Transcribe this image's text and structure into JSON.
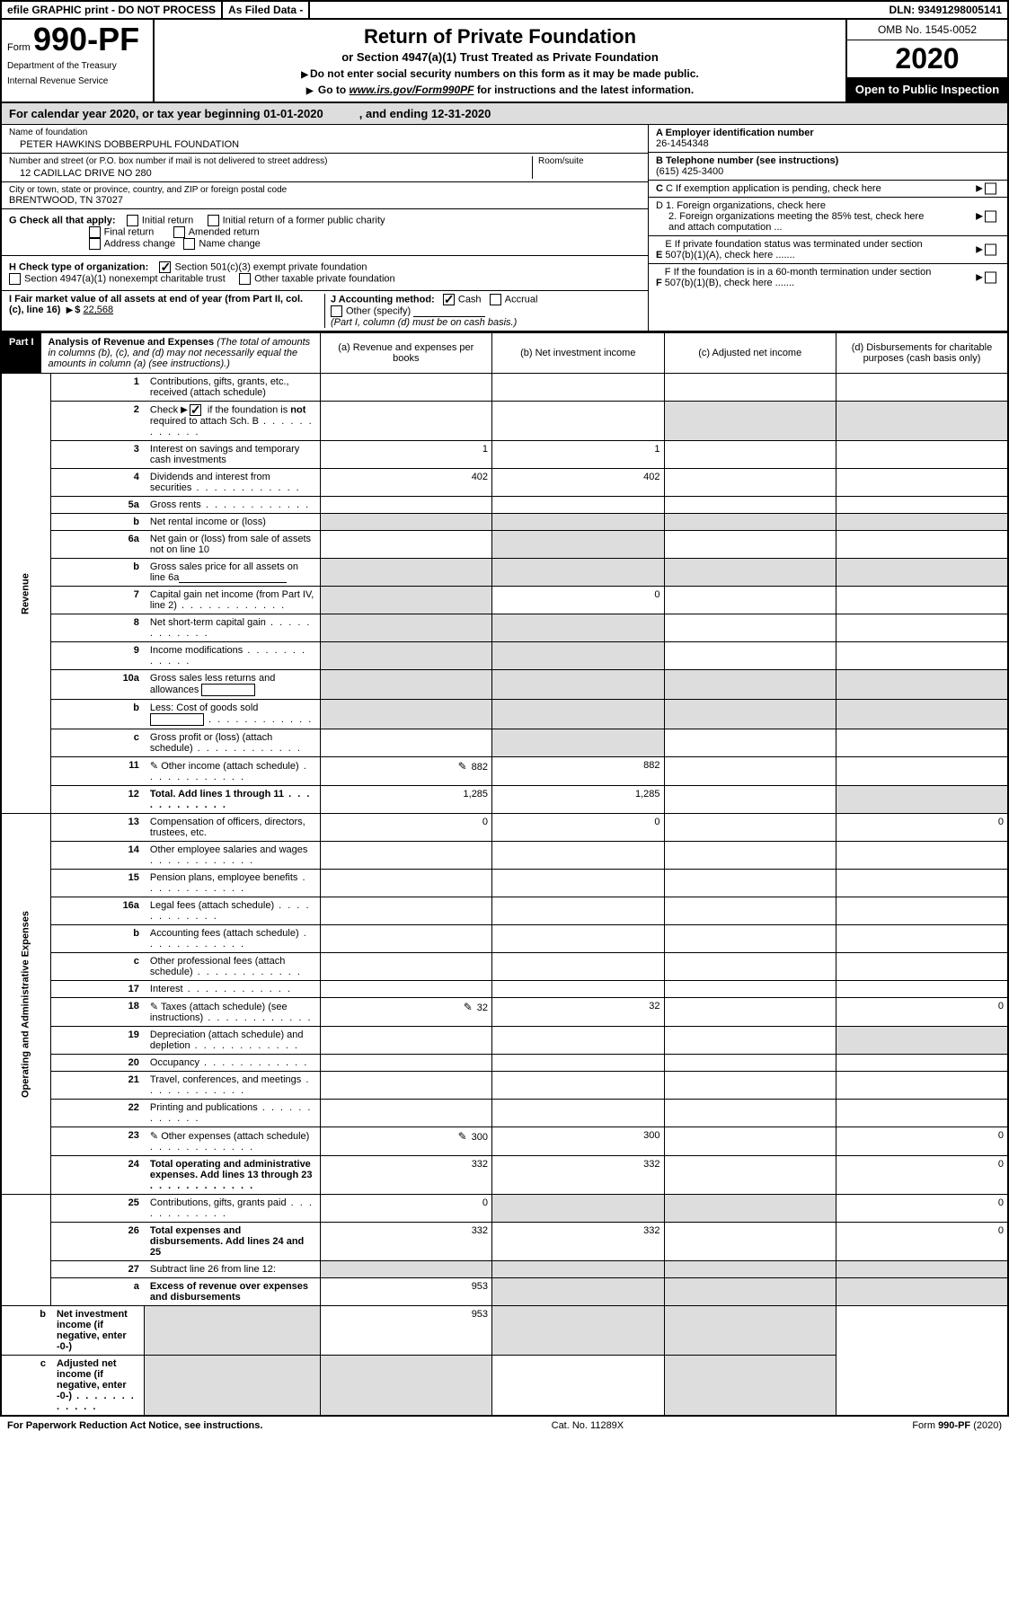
{
  "topbar": {
    "efile": "efile GRAPHIC print - DO NOT PROCESS",
    "asfiled": "As Filed Data -",
    "dln_label": "DLN:",
    "dln": "93491298005141"
  },
  "header": {
    "form_word": "Form",
    "form_num": "990-PF",
    "dept1": "Department of the Treasury",
    "dept2": "Internal Revenue Service",
    "title": "Return of Private Foundation",
    "subtitle": "or Section 4947(a)(1) Trust Treated as Private Foundation",
    "instr1": "Do not enter social security numbers on this form as it may be made public.",
    "instr2a": "Go to ",
    "instr2_link": "www.irs.gov/Form990PF",
    "instr2b": " for instructions and the latest information.",
    "omb": "OMB No. 1545-0052",
    "year": "2020",
    "open": "Open to Public Inspection"
  },
  "cal": {
    "text1": "For calendar year 2020, or tax year beginning 01-01-2020",
    "text2": ", and ending 12-31-2020"
  },
  "info": {
    "name_label": "Name of foundation",
    "name": "PETER HAWKINS DOBBERPUHL FOUNDATION",
    "addr_label": "Number and street (or P.O. box number if mail is not delivered to street address)",
    "room_label": "Room/suite",
    "addr": "12 CADILLAC DRIVE NO 280",
    "city_label": "City or town, state or province, country, and ZIP or foreign postal code",
    "city": "BRENTWOOD, TN  37027",
    "g_label": "G Check all that apply:",
    "g1": "Initial return",
    "g2": "Initial return of a former public charity",
    "g3": "Final return",
    "g4": "Amended return",
    "g5": "Address change",
    "g6": "Name change",
    "h_label": "H Check type of organization:",
    "h1": "Section 501(c)(3) exempt private foundation",
    "h2": "Section 4947(a)(1) nonexempt charitable trust",
    "h3": "Other taxable private foundation",
    "i_label": "I Fair market value of all assets at end of year (from Part II, col. (c), line 16)",
    "i_amount_label": "$",
    "i_amount": "22,568",
    "j_label": "J Accounting method:",
    "j1": "Cash",
    "j2": "Accrual",
    "j3": "Other (specify)",
    "j_note": "(Part I, column (d) must be on cash basis.)",
    "a_label": "A Employer identification number",
    "a_val": "26-1454348",
    "b_label": "B Telephone number (see instructions)",
    "b_val": "(615) 425-3400",
    "c_label": "C If exemption application is pending, check here",
    "d1": "D 1. Foreign organizations, check here",
    "d2": "2. Foreign organizations meeting the 85% test, check here and attach computation ...",
    "e_label": "E If private foundation status was terminated under section 507(b)(1)(A), check here .......",
    "f_label": "F If the foundation is in a 60-month termination under section 507(b)(1)(B), check here ......."
  },
  "part1": {
    "tag": "Part I",
    "title": "Analysis of Revenue and Expenses",
    "title_note": "(The total of amounts in columns (b), (c), and (d) may not necessarily equal the amounts in column (a) (see instructions).)",
    "col_a": "(a)  Revenue and expenses per books",
    "col_b": "(b)  Net investment income",
    "col_c": "(c)  Adjusted net income",
    "col_d": "(d)  Disbursements for charitable purposes (cash basis only)",
    "side_revenue": "Revenue",
    "side_expenses": "Operating and Administrative Expenses"
  },
  "rows": [
    {
      "n": "1",
      "desc": "Contributions, gifts, grants, etc., received (attach schedule)",
      "a": "",
      "b": "",
      "c": "",
      "d": ""
    },
    {
      "n": "2",
      "desc": "Check ▶ ☑ if the foundation is not required to attach Sch. B",
      "dotted": true,
      "a": "",
      "b": "",
      "c": "",
      "d": "",
      "d_gray": true,
      "c_gray": true
    },
    {
      "n": "3",
      "desc": "Interest on savings and temporary cash investments",
      "a": "1",
      "b": "1",
      "c": "",
      "d": ""
    },
    {
      "n": "4",
      "desc": "Dividends and interest from securities",
      "dotted": true,
      "a": "402",
      "b": "402",
      "c": "",
      "d": ""
    },
    {
      "n": "5a",
      "desc": "Gross rents",
      "dotted": true,
      "a": "",
      "b": "",
      "c": "",
      "d": ""
    },
    {
      "n": "b",
      "desc": "Net rental income or (loss)",
      "a": "",
      "b": "",
      "c": "",
      "d": "",
      "a_gray": true,
      "b_gray": true,
      "c_gray": true,
      "d_gray": true
    },
    {
      "n": "6a",
      "desc": "Net gain or (loss) from sale of assets not on line 10",
      "a": "",
      "b": "",
      "c": "",
      "d": "",
      "b_gray": true
    },
    {
      "n": "b",
      "desc": "Gross sales price for all assets on line 6a",
      "underline": true,
      "a": "",
      "b": "",
      "c": "",
      "d": "",
      "a_gray": true,
      "b_gray": true,
      "c_gray": true,
      "d_gray": true
    },
    {
      "n": "7",
      "desc": "Capital gain net income (from Part IV, line 2)",
      "dotted": true,
      "a": "",
      "b": "0",
      "c": "",
      "d": "",
      "a_gray": true
    },
    {
      "n": "8",
      "desc": "Net short-term capital gain",
      "dotted": true,
      "a": "",
      "b": "",
      "c": "",
      "d": "",
      "a_gray": true,
      "b_gray": true
    },
    {
      "n": "9",
      "desc": "Income modifications",
      "dotted": true,
      "a": "",
      "b": "",
      "c": "",
      "d": "",
      "a_gray": true,
      "b_gray": true
    },
    {
      "n": "10a",
      "desc": "Gross sales less returns and allowances",
      "box": true,
      "a": "",
      "b": "",
      "c": "",
      "d": "",
      "a_gray": true,
      "b_gray": true,
      "c_gray": true,
      "d_gray": true
    },
    {
      "n": "b",
      "desc": "Less: Cost of goods sold",
      "dotted": true,
      "box": true,
      "a": "",
      "b": "",
      "c": "",
      "d": "",
      "a_gray": true,
      "b_gray": true,
      "c_gray": true,
      "d_gray": true
    },
    {
      "n": "c",
      "desc": "Gross profit or (loss) (attach schedule)",
      "dotted": true,
      "a": "",
      "b": "",
      "c": "",
      "d": "",
      "b_gray": true
    },
    {
      "n": "11",
      "desc": "Other income (attach schedule)",
      "dotted": true,
      "icon": true,
      "a": "882",
      "b": "882",
      "c": "",
      "d": ""
    },
    {
      "n": "12",
      "desc": "Total. Add lines 1 through 11",
      "dotted": true,
      "bold": true,
      "a": "1,285",
      "b": "1,285",
      "c": "",
      "d": "",
      "d_gray": true
    },
    {
      "n": "13",
      "desc": "Compensation of officers, directors, trustees, etc.",
      "a": "0",
      "b": "0",
      "c": "",
      "d": "0"
    },
    {
      "n": "14",
      "desc": "Other employee salaries and wages",
      "dotted": true,
      "a": "",
      "b": "",
      "c": "",
      "d": ""
    },
    {
      "n": "15",
      "desc": "Pension plans, employee benefits",
      "dotted": true,
      "a": "",
      "b": "",
      "c": "",
      "d": ""
    },
    {
      "n": "16a",
      "desc": "Legal fees (attach schedule)",
      "dotted": true,
      "a": "",
      "b": "",
      "c": "",
      "d": ""
    },
    {
      "n": "b",
      "desc": "Accounting fees (attach schedule)",
      "dotted": true,
      "a": "",
      "b": "",
      "c": "",
      "d": ""
    },
    {
      "n": "c",
      "desc": "Other professional fees (attach schedule)",
      "dotted": true,
      "a": "",
      "b": "",
      "c": "",
      "d": ""
    },
    {
      "n": "17",
      "desc": "Interest",
      "dotted": true,
      "a": "",
      "b": "",
      "c": "",
      "d": ""
    },
    {
      "n": "18",
      "desc": "Taxes (attach schedule) (see instructions)",
      "dotted": true,
      "icon": true,
      "a": "32",
      "b": "32",
      "c": "",
      "d": "0"
    },
    {
      "n": "19",
      "desc": "Depreciation (attach schedule) and depletion",
      "dotted": true,
      "a": "",
      "b": "",
      "c": "",
      "d": "",
      "d_gray": true
    },
    {
      "n": "20",
      "desc": "Occupancy",
      "dotted": true,
      "a": "",
      "b": "",
      "c": "",
      "d": ""
    },
    {
      "n": "21",
      "desc": "Travel, conferences, and meetings",
      "dotted": true,
      "a": "",
      "b": "",
      "c": "",
      "d": ""
    },
    {
      "n": "22",
      "desc": "Printing and publications",
      "dotted": true,
      "a": "",
      "b": "",
      "c": "",
      "d": ""
    },
    {
      "n": "23",
      "desc": "Other expenses (attach schedule)",
      "dotted": true,
      "icon": true,
      "a": "300",
      "b": "300",
      "c": "",
      "d": "0"
    },
    {
      "n": "24",
      "desc": "Total operating and administrative expenses. Add lines 13 through 23",
      "dotted": true,
      "bold": true,
      "a": "332",
      "b": "332",
      "c": "",
      "d": "0"
    },
    {
      "n": "25",
      "desc": "Contributions, gifts, grants paid",
      "dotted": true,
      "a": "0",
      "b": "",
      "c": "",
      "d": "0",
      "b_gray": true,
      "c_gray": true
    },
    {
      "n": "26",
      "desc": "Total expenses and disbursements. Add lines 24 and 25",
      "bold": true,
      "a": "332",
      "b": "332",
      "c": "",
      "d": "0"
    },
    {
      "n": "27",
      "desc": "Subtract line 26 from line 12:",
      "a": "",
      "b": "",
      "c": "",
      "d": "",
      "a_gray": true,
      "b_gray": true,
      "c_gray": true,
      "d_gray": true
    },
    {
      "n": "a",
      "desc": "Excess of revenue over expenses and disbursements",
      "bold": true,
      "a": "953",
      "b": "",
      "c": "",
      "d": "",
      "b_gray": true,
      "c_gray": true,
      "d_gray": true
    },
    {
      "n": "b",
      "desc": "Net investment income (if negative, enter -0-)",
      "bold": true,
      "a": "",
      "b": "953",
      "c": "",
      "d": "",
      "a_gray": true,
      "c_gray": true,
      "d_gray": true
    },
    {
      "n": "c",
      "desc": "Adjusted net income (if negative, enter -0-)",
      "dotted": true,
      "bold": true,
      "a": "",
      "b": "",
      "c": "",
      "d": "",
      "a_gray": true,
      "b_gray": true,
      "d_gray": true
    }
  ],
  "footer": {
    "left": "For Paperwork Reduction Act Notice, see instructions.",
    "mid": "Cat. No. 11289X",
    "right": "Form 990-PF (2020)"
  }
}
